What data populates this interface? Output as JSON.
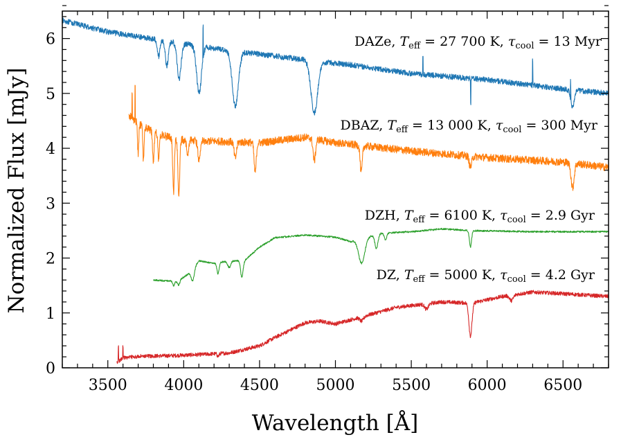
{
  "chart_data": {
    "type": "line",
    "title": "",
    "xlabel": "Wavelength [Å]",
    "ylabel": "Normalized Flux [mJy]",
    "xlim": [
      3200,
      6800
    ],
    "ylim": [
      0,
      6.5
    ],
    "xticks": [
      3500,
      4000,
      4500,
      5000,
      5500,
      6000,
      6500
    ],
    "yticks": [
      0,
      1,
      2,
      3,
      4,
      5,
      6
    ],
    "xticklabels": [
      "3500",
      "4000",
      "4500",
      "5000",
      "5500",
      "6000",
      "6500"
    ],
    "yticklabels": [
      "0",
      "1",
      "2",
      "3",
      "4",
      "5",
      "6"
    ],
    "grid": false,
    "series": [
      {
        "name": "DAZe",
        "color": "#1f77b4",
        "label": {
          "type": "DAZe,",
          "teff": "27 700 K,",
          "tcool": "13 Myr"
        },
        "xrange": [
          3200,
          6800
        ],
        "noise": 0.05,
        "points": [
          [
            3200,
            6.33
          ],
          [
            3500,
            6.12
          ],
          [
            3900,
            5.95
          ],
          [
            4200,
            5.82
          ],
          [
            4600,
            5.68
          ],
          [
            4900,
            5.58
          ],
          [
            5100,
            5.52
          ],
          [
            5500,
            5.36
          ],
          [
            6000,
            5.25
          ],
          [
            6500,
            5.08
          ],
          [
            6800,
            5.0
          ]
        ],
        "lines": [
          [
            3835,
            0.3,
            8
          ],
          [
            3889,
            0.45,
            10
          ],
          [
            3970,
            0.65,
            13
          ],
          [
            4101,
            0.85,
            16
          ],
          [
            4340,
            1.0,
            20
          ],
          [
            4861,
            0.95,
            22
          ],
          [
            6563,
            0.3,
            12
          ]
        ],
        "spikes": [
          [
            4128,
            0.6
          ],
          [
            5577,
            0.35
          ],
          [
            5892,
            -0.45
          ],
          [
            6300,
            0.45
          ],
          [
            6550,
            0.3
          ]
        ]
      },
      {
        "name": "DBAZ",
        "color": "#ff7f0e",
        "label": {
          "type": "DBAZ,",
          "teff": "13 000 K,",
          "tcool": "300 Myr"
        },
        "xrange": [
          3640,
          6800
        ],
        "noise": 0.07,
        "points": [
          [
            3640,
            4.6
          ],
          [
            3700,
            4.45
          ],
          [
            3800,
            4.3
          ],
          [
            3900,
            4.2
          ],
          [
            4000,
            4.15
          ],
          [
            4500,
            4.1
          ],
          [
            4800,
            4.2
          ],
          [
            5000,
            4.1
          ],
          [
            5500,
            3.95
          ],
          [
            6000,
            3.83
          ],
          [
            6500,
            3.75
          ],
          [
            6800,
            3.65
          ]
        ],
        "lines": [
          [
            3700,
            0.55,
            4
          ],
          [
            3735,
            0.65,
            4
          ],
          [
            3800,
            0.55,
            5
          ],
          [
            3835,
            0.5,
            5
          ],
          [
            3933,
            1.0,
            5
          ],
          [
            3968,
            1.0,
            6
          ],
          [
            4026,
            0.3,
            6
          ],
          [
            4101,
            0.35,
            8
          ],
          [
            4340,
            0.3,
            8
          ],
          [
            4471,
            0.55,
            7
          ],
          [
            4861,
            0.4,
            8
          ],
          [
            5170,
            0.5,
            7
          ],
          [
            5890,
            0.2,
            8
          ],
          [
            6563,
            0.45,
            10
          ]
        ],
        "spikes": [
          [
            3660,
            0.5
          ],
          [
            3680,
            0.6
          ]
        ]
      },
      {
        "name": "DZH",
        "color": "#2ca02c",
        "label": {
          "type": "DZH,",
          "teff": "6100 K,",
          "tcool": "2.9 Gyr"
        },
        "xrange": [
          3800,
          6800
        ],
        "noise": 0.015,
        "points": [
          [
            3800,
            1.6
          ],
          [
            3960,
            1.57
          ],
          [
            4050,
            1.75
          ],
          [
            4100,
            1.95
          ],
          [
            4200,
            1.9
          ],
          [
            4300,
            1.95
          ],
          [
            4400,
            1.95
          ],
          [
            4500,
            2.2
          ],
          [
            4600,
            2.37
          ],
          [
            4800,
            2.42
          ],
          [
            5000,
            2.38
          ],
          [
            5100,
            2.3
          ],
          [
            5300,
            2.45
          ],
          [
            5500,
            2.48
          ],
          [
            5700,
            2.53
          ],
          [
            5900,
            2.5
          ],
          [
            6300,
            2.48
          ],
          [
            6800,
            2.48
          ]
        ],
        "lines": [
          [
            3933,
            0.08,
            6
          ],
          [
            3968,
            0.08,
            6
          ],
          [
            4060,
            0.2,
            10
          ],
          [
            4226,
            0.2,
            7
          ],
          [
            4300,
            0.12,
            10
          ],
          [
            4383,
            0.3,
            8
          ],
          [
            5173,
            0.45,
            20
          ],
          [
            5270,
            0.25,
            10
          ],
          [
            5330,
            0.12,
            8
          ],
          [
            5890,
            0.3,
            7
          ]
        ],
        "spikes": []
      },
      {
        "name": "DZ",
        "color": "#d62728",
        "label": {
          "type": "DZ,",
          "teff": "5000 K,",
          "tcool": "4.2 Gyr"
        },
        "xrange": [
          3560,
          6800
        ],
        "noise": 0.035,
        "points": [
          [
            3560,
            0.1
          ],
          [
            3600,
            0.18
          ],
          [
            3700,
            0.21
          ],
          [
            3900,
            0.22
          ],
          [
            4100,
            0.24
          ],
          [
            4300,
            0.27
          ],
          [
            4500,
            0.4
          ],
          [
            4600,
            0.55
          ],
          [
            4800,
            0.82
          ],
          [
            4900,
            0.85
          ],
          [
            5000,
            0.8
          ],
          [
            5200,
            0.95
          ],
          [
            5400,
            1.1
          ],
          [
            5700,
            1.2
          ],
          [
            5900,
            1.18
          ],
          [
            6100,
            1.3
          ],
          [
            6300,
            1.38
          ],
          [
            6500,
            1.35
          ],
          [
            6800,
            1.3
          ]
        ],
        "lines": [
          [
            4227,
            0.05,
            6
          ],
          [
            5173,
            0.08,
            12
          ],
          [
            5600,
            0.1,
            12
          ],
          [
            5890,
            0.6,
            10
          ],
          [
            6160,
            0.1,
            12
          ]
        ],
        "spikes": [
          [
            3570,
            0.25
          ],
          [
            3600,
            0.2
          ]
        ]
      }
    ]
  }
}
